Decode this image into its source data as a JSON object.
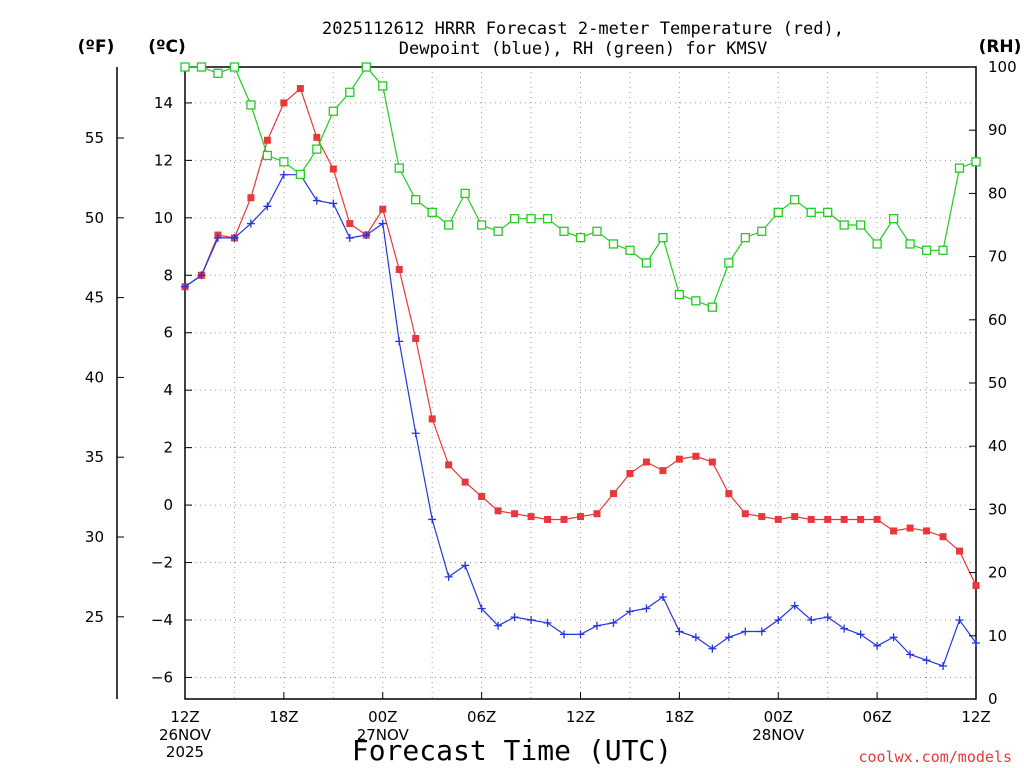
{
  "chart_data": {
    "type": "line",
    "title": "2025112612 HRRR Forecast 2-meter Temperature (red),",
    "subtitle": "Dewpoint (blue), RH (green) for KMSV",
    "xlabel": "Forecast Time (UTC)",
    "watermark": "coolwx.com/models",
    "units_left_f": "(ºF)",
    "units_left_c": "(ºC)",
    "units_right": "(RH)",
    "x_range": [
      0,
      48
    ],
    "y_range_c": [
      -6.75,
      15.25
    ],
    "y_range_rh": [
      0,
      100
    ],
    "x_ticks": [
      {
        "x": 0,
        "label": "12Z",
        "sub": [
          "26NOV",
          "2025"
        ]
      },
      {
        "x": 6,
        "label": "18Z",
        "sub": []
      },
      {
        "x": 12,
        "label": "00Z",
        "sub": [
          "27NOV"
        ]
      },
      {
        "x": 18,
        "label": "06Z",
        "sub": []
      },
      {
        "x": 24,
        "label": "12Z",
        "sub": []
      },
      {
        "x": 30,
        "label": "18Z",
        "sub": []
      },
      {
        "x": 36,
        "label": "00Z",
        "sub": [
          "28NOV"
        ]
      },
      {
        "x": 42,
        "label": "06Z",
        "sub": []
      },
      {
        "x": 48,
        "label": "12Z",
        "sub": []
      }
    ],
    "y_ticks_c": [
      -6,
      -4,
      -2,
      0,
      2,
      4,
      6,
      8,
      10,
      12,
      14
    ],
    "y_ticks_f": [
      25,
      30,
      35,
      40,
      45,
      50,
      55
    ],
    "y_ticks_rh": [
      0,
      10,
      20,
      30,
      40,
      50,
      60,
      70,
      80,
      90,
      100
    ],
    "series": [
      {
        "name": "Temperature",
        "color": "#e8383a",
        "marker": "filled-square",
        "axis": "c",
        "values": [
          7.6,
          8.0,
          9.4,
          9.3,
          10.7,
          12.7,
          14.0,
          14.5,
          12.8,
          11.7,
          9.8,
          9.4,
          10.3,
          8.2,
          5.8,
          3.0,
          1.4,
          0.8,
          0.3,
          -0.2,
          -0.3,
          -0.4,
          -0.5,
          -0.5,
          -0.4,
          -0.3,
          0.4,
          1.1,
          1.5,
          1.2,
          1.6,
          1.7,
          1.5,
          0.4,
          -0.3,
          -0.4,
          -0.5,
          -0.4,
          -0.5,
          -0.5,
          -0.5,
          -0.5,
          -0.5,
          -0.9,
          -0.8,
          -0.9,
          -1.1,
          -1.6,
          -2.8
        ]
      },
      {
        "name": "Dewpoint",
        "color": "#2336e0",
        "marker": "plus",
        "axis": "c",
        "values": [
          7.6,
          8.0,
          9.3,
          9.3,
          9.8,
          10.4,
          11.5,
          11.5,
          10.6,
          10.5,
          9.3,
          9.4,
          9.8,
          5.7,
          2.5,
          -0.5,
          -2.5,
          -2.1,
          -3.6,
          -4.2,
          -3.9,
          -4.0,
          -4.1,
          -4.5,
          -4.5,
          -4.2,
          -4.1,
          -3.7,
          -3.6,
          -3.2,
          -4.4,
          -4.6,
          -5.0,
          -4.6,
          -4.4,
          -4.4,
          -4.0,
          -3.5,
          -4.0,
          -3.9,
          -4.3,
          -4.5,
          -4.9,
          -4.6,
          -5.2,
          -5.4,
          -5.6,
          -4.0,
          -4.8
        ]
      },
      {
        "name": "RH",
        "color": "#22cc22",
        "marker": "open-square",
        "axis": "rh",
        "values": [
          100,
          100,
          99,
          100,
          94,
          86,
          85,
          83,
          87,
          93,
          96,
          100,
          97,
          84,
          79,
          77,
          75,
          80,
          75,
          74,
          76,
          76,
          76,
          74,
          73,
          74,
          72,
          71,
          69,
          73,
          64,
          63,
          62,
          69,
          73,
          74,
          77,
          79,
          77,
          77,
          75,
          75,
          72,
          76,
          72,
          71,
          71,
          84,
          85
        ]
      }
    ]
  }
}
